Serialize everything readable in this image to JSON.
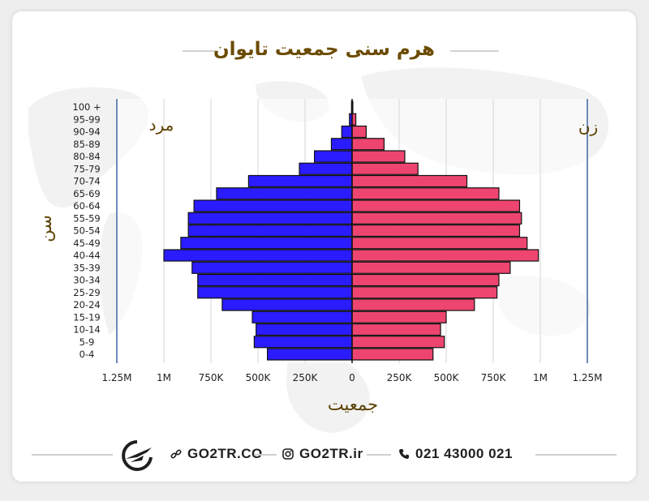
{
  "chart_data": {
    "type": "bar",
    "title": "هرم سنی جمعیت تایوان",
    "xlabel": "جمعیت",
    "ylabel": "سن",
    "left_label": "مرد",
    "right_label": "زن",
    "categories": [
      "100 +",
      "95-99",
      "90-94",
      "85-89",
      "80-84",
      "75-79",
      "70-74",
      "65-69",
      "60-64",
      "55-59",
      "50-54",
      "45-49",
      "40-44",
      "35-39",
      "30-34",
      "25-29",
      "20-24",
      "15-19",
      "10-14",
      "5-9",
      "0-4"
    ],
    "series": [
      {
        "name": "مرد",
        "color": "#2a1cff",
        "values": [
          3000,
          14000,
          55000,
          110000,
          200000,
          280000,
          550000,
          720000,
          840000,
          870000,
          870000,
          910000,
          1000000,
          850000,
          820000,
          820000,
          690000,
          530000,
          510000,
          520000,
          450000
        ]
      },
      {
        "name": "زن",
        "color": "#ee4570",
        "values": [
          4000,
          20000,
          75000,
          170000,
          280000,
          350000,
          610000,
          780000,
          890000,
          900000,
          890000,
          930000,
          990000,
          840000,
          780000,
          770000,
          650000,
          500000,
          470000,
          490000,
          430000
        ]
      }
    ],
    "xticks": [
      "1.25M",
      "1M",
      "750K",
      "500K",
      "250K",
      "0",
      "250K",
      "500K",
      "750K",
      "1M",
      "1.25M"
    ],
    "xlim": [
      -1250000,
      1250000
    ],
    "grid": true
  },
  "footer": {
    "website": "GO2TR.CO",
    "instagram": "GO2TR.ir",
    "phone": "021 43000 021"
  },
  "icons": [
    "link-icon",
    "instagram-icon",
    "phone-icon",
    "go2tr-logo-icon"
  ]
}
